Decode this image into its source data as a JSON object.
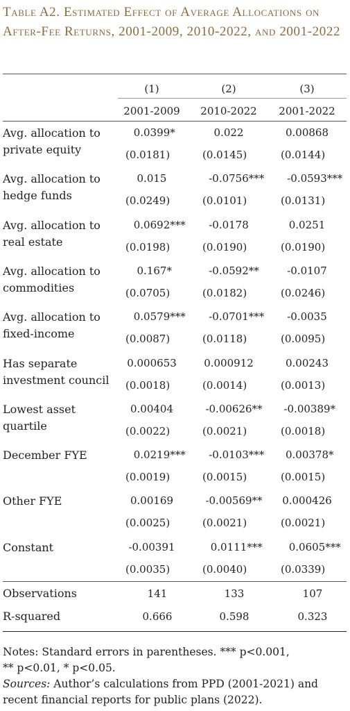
{
  "title": "Table A2. Estimated Effect of Average Allocations on After-Fee Returns, 2001-2009, 2010-2022, and 2001-2022",
  "columns": [
    {
      "num": "(1)",
      "period": "2001-2009"
    },
    {
      "num": "(2)",
      "period": "2010-2022"
    },
    {
      "num": "(3)",
      "period": "2001-2022"
    }
  ],
  "rows": [
    {
      "label1": "Avg. allocation to",
      "label2": "private equity",
      "coef": [
        {
          "v": "0.0399",
          "s": "*"
        },
        {
          "v": "0.022",
          "s": ""
        },
        {
          "v": "0.00868",
          "s": ""
        }
      ],
      "se": [
        "(0.0181)",
        "(0.0145)",
        "(0.0144)"
      ]
    },
    {
      "label1": "Avg. allocation to",
      "label2": "hedge funds",
      "coef": [
        {
          "v": "0.015",
          "s": ""
        },
        {
          "v": "-0.0756",
          "s": "***"
        },
        {
          "v": "-0.0593",
          "s": "***"
        }
      ],
      "se": [
        "(0.0249)",
        "(0.0101)",
        "(0.0131)"
      ]
    },
    {
      "label1": "Avg. allocation to",
      "label2": "real estate",
      "coef": [
        {
          "v": "0.0692",
          "s": "***"
        },
        {
          "v": "-0.0178",
          "s": ""
        },
        {
          "v": "0.0251",
          "s": ""
        }
      ],
      "se": [
        "(0.0198)",
        "(0.0190)",
        "(0.0190)"
      ]
    },
    {
      "label1": "Avg. allocation to",
      "label2": "commodities",
      "coef": [
        {
          "v": "0.167",
          "s": "*"
        },
        {
          "v": "-0.0592",
          "s": "**"
        },
        {
          "v": "-0.0107",
          "s": ""
        }
      ],
      "se": [
        "(0.0705)",
        "(0.0182)",
        "(0.0246)"
      ]
    },
    {
      "label1": "Avg. allocation to",
      "label2": "fixed-income",
      "coef": [
        {
          "v": "0.0579",
          "s": "***"
        },
        {
          "v": "-0.0701",
          "s": "***"
        },
        {
          "v": "-0.0035",
          "s": ""
        }
      ],
      "se": [
        "(0.0087)",
        "(0.0118)",
        "(0.0095)"
      ]
    },
    {
      "label1": "Has separate",
      "label2": "investment council",
      "coef": [
        {
          "v": "0.000653",
          "s": ""
        },
        {
          "v": "0.000912",
          "s": ""
        },
        {
          "v": "0.00243",
          "s": ""
        }
      ],
      "se": [
        "(0.0018)",
        "(0.0014)",
        "(0.0013)"
      ]
    },
    {
      "label1": "Lowest asset",
      "label2": "quartile",
      "coef": [
        {
          "v": "0.00404",
          "s": ""
        },
        {
          "v": "-0.00626",
          "s": "**"
        },
        {
          "v": "-0.00389",
          "s": "*"
        }
      ],
      "se": [
        "(0.0022)",
        "(0.0021)",
        "(0.0018)"
      ]
    },
    {
      "label1": "December FYE",
      "label2": "",
      "coef": [
        {
          "v": "0.0219",
          "s": "***"
        },
        {
          "v": "-0.0103",
          "s": "***"
        },
        {
          "v": "0.00378",
          "s": "*"
        }
      ],
      "se": [
        "(0.0019)",
        "(0.0015)",
        "(0.0015)"
      ]
    },
    {
      "label1": "Other FYE",
      "label2": "",
      "coef": [
        {
          "v": "0.00169",
          "s": ""
        },
        {
          "v": "-0.00569",
          "s": "**"
        },
        {
          "v": "0.000426",
          "s": ""
        }
      ],
      "se": [
        "(0.0025)",
        "(0.0021)",
        "(0.0021)"
      ]
    },
    {
      "label1": "Constant",
      "label2": "",
      "coef": [
        {
          "v": "-0.00391",
          "s": ""
        },
        {
          "v": "0.0111",
          "s": "***"
        },
        {
          "v": "0.0605",
          "s": "***"
        }
      ],
      "se": [
        "(0.0035)",
        "(0.0040)",
        "(0.0339)"
      ]
    }
  ],
  "stats": [
    {
      "label": "Observations",
      "values": [
        "141",
        "133",
        "107"
      ]
    },
    {
      "label": "R-squared",
      "values": [
        "0.666",
        "0.598",
        "0.323"
      ]
    }
  ],
  "notes": {
    "line1": "Notes: Standard errors in parentheses.  *** p<0.001,",
    "line2": "** p<0.01, * p<0.05.",
    "sources_label": "Sources:",
    "sources_text": " Author’s calculations from PPD (2001-2021) and recent financial reports for public plans (2022)."
  }
}
